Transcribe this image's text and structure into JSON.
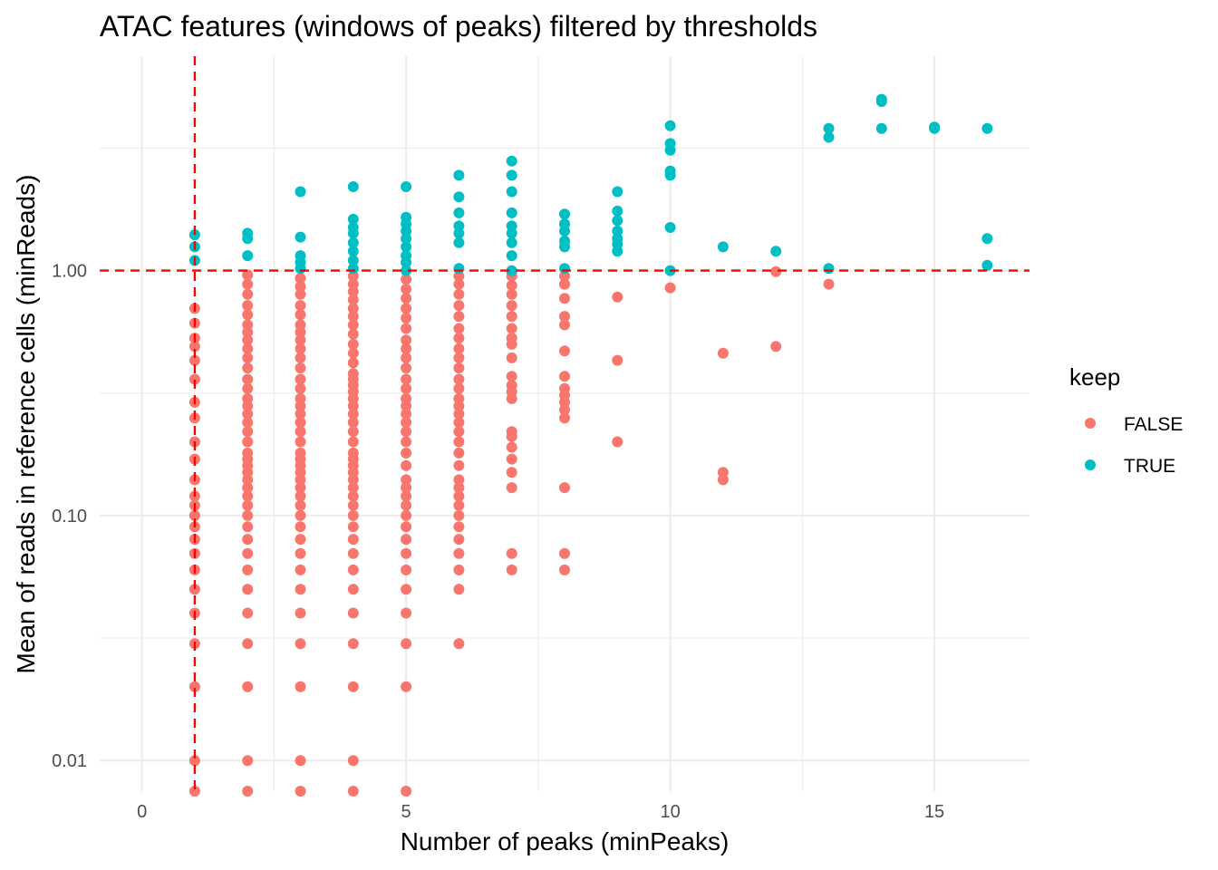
{
  "chart_data": {
    "type": "scatter",
    "title": "ATAC features (windows of peaks) filtered by thresholds",
    "xlabel": "Number of peaks (minPeaks)",
    "ylabel": "Mean of reads in reference cells (minReads)",
    "x_scale": "linear",
    "y_scale": "log10",
    "xlim": [
      -0.8,
      16.8
    ],
    "ylim": [
      0.0075,
      7.5
    ],
    "x_ticks": [
      0,
      5,
      10,
      15
    ],
    "x_tick_labels": [
      "0",
      "5",
      "10",
      "15"
    ],
    "y_ticks": [
      0.01,
      0.1,
      1
    ],
    "y_tick_labels": [
      "0.01",
      "0.10",
      "1.00"
    ],
    "grid": true,
    "thresholds": {
      "minPeaks": 1,
      "minReads": 1
    },
    "legend": {
      "title": "keep",
      "position": "right",
      "entries": [
        {
          "label": "FALSE",
          "color": "#F8766D"
        },
        {
          "label": "TRUE",
          "color": "#00BFC4"
        }
      ]
    },
    "series": [
      {
        "name": "FALSE",
        "color": "#F8766D",
        "points": [
          [
            1,
            0.0075
          ],
          [
            1,
            0.01
          ],
          [
            1,
            0.02
          ],
          [
            1,
            0.03
          ],
          [
            1,
            0.04
          ],
          [
            1,
            0.05
          ],
          [
            1,
            0.06
          ],
          [
            1,
            0.07
          ],
          [
            1,
            0.08
          ],
          [
            1,
            0.09
          ],
          [
            1,
            0.1
          ],
          [
            1,
            0.11
          ],
          [
            1,
            0.12
          ],
          [
            1,
            0.14
          ],
          [
            1,
            0.17
          ],
          [
            1,
            0.2
          ],
          [
            1,
            0.25
          ],
          [
            1,
            0.29
          ],
          [
            1,
            0.36
          ],
          [
            1,
            0.43
          ],
          [
            1,
            0.49
          ],
          [
            1,
            0.53
          ],
          [
            1,
            0.61
          ],
          [
            1,
            0.7
          ],
          [
            2,
            0.0075
          ],
          [
            2,
            0.01
          ],
          [
            2,
            0.02
          ],
          [
            2,
            0.03
          ],
          [
            2,
            0.04
          ],
          [
            2,
            0.05
          ],
          [
            2,
            0.06
          ],
          [
            2,
            0.07
          ],
          [
            2,
            0.08
          ],
          [
            2,
            0.09
          ],
          [
            2,
            0.1
          ],
          [
            2,
            0.11
          ],
          [
            2,
            0.12
          ],
          [
            2,
            0.13
          ],
          [
            2,
            0.14
          ],
          [
            2,
            0.15
          ],
          [
            2,
            0.16
          ],
          [
            2,
            0.17
          ],
          [
            2,
            0.18
          ],
          [
            2,
            0.2
          ],
          [
            2,
            0.22
          ],
          [
            2,
            0.24
          ],
          [
            2,
            0.26
          ],
          [
            2,
            0.28
          ],
          [
            2,
            0.3
          ],
          [
            2,
            0.33
          ],
          [
            2,
            0.36
          ],
          [
            2,
            0.4
          ],
          [
            2,
            0.44
          ],
          [
            2,
            0.48
          ],
          [
            2,
            0.52
          ],
          [
            2,
            0.56
          ],
          [
            2,
            0.6
          ],
          [
            2,
            0.66
          ],
          [
            2,
            0.72
          ],
          [
            2,
            0.8
          ],
          [
            2,
            0.88
          ],
          [
            2,
            0.96
          ],
          [
            3,
            0.0075
          ],
          [
            3,
            0.01
          ],
          [
            3,
            0.02
          ],
          [
            3,
            0.03
          ],
          [
            3,
            0.04
          ],
          [
            3,
            0.05
          ],
          [
            3,
            0.06
          ],
          [
            3,
            0.07
          ],
          [
            3,
            0.08
          ],
          [
            3,
            0.09
          ],
          [
            3,
            0.1
          ],
          [
            3,
            0.11
          ],
          [
            3,
            0.12
          ],
          [
            3,
            0.13
          ],
          [
            3,
            0.14
          ],
          [
            3,
            0.15
          ],
          [
            3,
            0.16
          ],
          [
            3,
            0.17
          ],
          [
            3,
            0.18
          ],
          [
            3,
            0.2
          ],
          [
            3,
            0.22
          ],
          [
            3,
            0.24
          ],
          [
            3,
            0.26
          ],
          [
            3,
            0.28
          ],
          [
            3,
            0.3
          ],
          [
            3,
            0.33
          ],
          [
            3,
            0.36
          ],
          [
            3,
            0.4
          ],
          [
            3,
            0.44
          ],
          [
            3,
            0.48
          ],
          [
            3,
            0.52
          ],
          [
            3,
            0.56
          ],
          [
            3,
            0.6
          ],
          [
            3,
            0.66
          ],
          [
            3,
            0.72
          ],
          [
            3,
            0.8
          ],
          [
            3,
            0.86
          ],
          [
            3,
            0.93
          ],
          [
            4,
            0.0075
          ],
          [
            4,
            0.01
          ],
          [
            4,
            0.02
          ],
          [
            4,
            0.03
          ],
          [
            4,
            0.04
          ],
          [
            4,
            0.05
          ],
          [
            4,
            0.06
          ],
          [
            4,
            0.07
          ],
          [
            4,
            0.08
          ],
          [
            4,
            0.09
          ],
          [
            4,
            0.1
          ],
          [
            4,
            0.11
          ],
          [
            4,
            0.12
          ],
          [
            4,
            0.13
          ],
          [
            4,
            0.14
          ],
          [
            4,
            0.15
          ],
          [
            4,
            0.16
          ],
          [
            4,
            0.17
          ],
          [
            4,
            0.18
          ],
          [
            4,
            0.2
          ],
          [
            4,
            0.22
          ],
          [
            4,
            0.24
          ],
          [
            4,
            0.26
          ],
          [
            4,
            0.28
          ],
          [
            4,
            0.3
          ],
          [
            4,
            0.32
          ],
          [
            4,
            0.34
          ],
          [
            4,
            0.36
          ],
          [
            4,
            0.38
          ],
          [
            4,
            0.42
          ],
          [
            4,
            0.46
          ],
          [
            4,
            0.5
          ],
          [
            4,
            0.55
          ],
          [
            4,
            0.6
          ],
          [
            4,
            0.65
          ],
          [
            4,
            0.7
          ],
          [
            4,
            0.76
          ],
          [
            4,
            0.82
          ],
          [
            4,
            0.88
          ],
          [
            4,
            0.95
          ],
          [
            5,
            0.0075
          ],
          [
            5,
            0.02
          ],
          [
            5,
            0.03
          ],
          [
            5,
            0.04
          ],
          [
            5,
            0.05
          ],
          [
            5,
            0.06
          ],
          [
            5,
            0.07
          ],
          [
            5,
            0.08
          ],
          [
            5,
            0.09
          ],
          [
            5,
            0.1
          ],
          [
            5,
            0.11
          ],
          [
            5,
            0.12
          ],
          [
            5,
            0.13
          ],
          [
            5,
            0.14
          ],
          [
            5,
            0.16
          ],
          [
            5,
            0.18
          ],
          [
            5,
            0.2
          ],
          [
            5,
            0.22
          ],
          [
            5,
            0.24
          ],
          [
            5,
            0.26
          ],
          [
            5,
            0.28
          ],
          [
            5,
            0.3
          ],
          [
            5,
            0.33
          ],
          [
            5,
            0.36
          ],
          [
            5,
            0.4
          ],
          [
            5,
            0.44
          ],
          [
            5,
            0.48
          ],
          [
            5,
            0.52
          ],
          [
            5,
            0.58
          ],
          [
            5,
            0.64
          ],
          [
            5,
            0.7
          ],
          [
            5,
            0.77
          ],
          [
            5,
            0.84
          ],
          [
            5,
            0.92
          ],
          [
            6,
            0.03
          ],
          [
            6,
            0.05
          ],
          [
            6,
            0.06
          ],
          [
            6,
            0.07
          ],
          [
            6,
            0.08
          ],
          [
            6,
            0.09
          ],
          [
            6,
            0.1
          ],
          [
            6,
            0.11
          ],
          [
            6,
            0.12
          ],
          [
            6,
            0.13
          ],
          [
            6,
            0.14
          ],
          [
            6,
            0.16
          ],
          [
            6,
            0.18
          ],
          [
            6,
            0.2
          ],
          [
            6,
            0.22
          ],
          [
            6,
            0.24
          ],
          [
            6,
            0.26
          ],
          [
            6,
            0.28
          ],
          [
            6,
            0.3
          ],
          [
            6,
            0.33
          ],
          [
            6,
            0.36
          ],
          [
            6,
            0.4
          ],
          [
            6,
            0.44
          ],
          [
            6,
            0.48
          ],
          [
            6,
            0.53
          ],
          [
            6,
            0.58
          ],
          [
            6,
            0.65
          ],
          [
            6,
            0.72
          ],
          [
            6,
            0.8
          ],
          [
            6,
            0.88
          ],
          [
            6,
            0.95
          ],
          [
            7,
            0.06
          ],
          [
            7,
            0.07
          ],
          [
            7,
            0.13
          ],
          [
            7,
            0.15
          ],
          [
            7,
            0.17
          ],
          [
            7,
            0.19
          ],
          [
            7,
            0.21
          ],
          [
            7,
            0.22
          ],
          [
            7,
            0.3
          ],
          [
            7,
            0.32
          ],
          [
            7,
            0.34
          ],
          [
            7,
            0.37
          ],
          [
            7,
            0.44
          ],
          [
            7,
            0.5
          ],
          [
            7,
            0.53
          ],
          [
            7,
            0.58
          ],
          [
            7,
            0.65
          ],
          [
            7,
            0.72
          ],
          [
            7,
            0.8
          ],
          [
            7,
            0.87
          ],
          [
            7,
            0.95
          ],
          [
            7,
            0.99
          ],
          [
            8,
            0.06
          ],
          [
            8,
            0.07
          ],
          [
            8,
            0.13
          ],
          [
            8,
            0.25
          ],
          [
            8,
            0.27
          ],
          [
            8,
            0.29
          ],
          [
            8,
            0.31
          ],
          [
            8,
            0.33
          ],
          [
            8,
            0.37
          ],
          [
            8,
            0.47
          ],
          [
            8,
            0.6
          ],
          [
            8,
            0.65
          ],
          [
            8,
            0.77
          ],
          [
            8,
            0.88
          ],
          [
            8,
            0.95
          ],
          [
            9,
            0.2
          ],
          [
            9,
            0.43
          ],
          [
            9,
            0.78
          ],
          [
            10,
            0.85
          ],
          [
            11,
            0.14
          ],
          [
            11,
            0.15
          ],
          [
            11,
            0.46
          ],
          [
            12,
            0.49
          ],
          [
            12,
            0.99
          ],
          [
            13,
            0.88
          ]
        ]
      },
      {
        "name": "TRUE",
        "color": "#00BFC4",
        "points": [
          [
            1,
            1.1
          ],
          [
            1,
            1.25
          ],
          [
            1,
            1.4
          ],
          [
            2,
            1.15
          ],
          [
            2,
            1.35
          ],
          [
            2,
            1.42
          ],
          [
            3,
            1.02
          ],
          [
            3,
            1.08
          ],
          [
            3,
            1.15
          ],
          [
            3,
            1.37
          ],
          [
            3,
            2.1
          ],
          [
            4,
            1.02
          ],
          [
            4,
            1.1
          ],
          [
            4,
            1.2
          ],
          [
            4,
            1.3
          ],
          [
            4,
            1.42
          ],
          [
            4,
            1.5
          ],
          [
            4,
            1.62
          ],
          [
            4,
            2.2
          ],
          [
            5,
            1.0
          ],
          [
            5,
            1.08
          ],
          [
            5,
            1.15
          ],
          [
            5,
            1.25
          ],
          [
            5,
            1.35
          ],
          [
            5,
            1.45
          ],
          [
            5,
            1.55
          ],
          [
            5,
            1.65
          ],
          [
            5,
            2.2
          ],
          [
            6,
            1.02
          ],
          [
            6,
            1.3
          ],
          [
            6,
            1.42
          ],
          [
            6,
            1.52
          ],
          [
            6,
            1.72
          ],
          [
            6,
            2.0
          ],
          [
            6,
            2.45
          ],
          [
            7,
            1.0
          ],
          [
            7,
            1.15
          ],
          [
            7,
            1.3
          ],
          [
            7,
            1.42
          ],
          [
            7,
            1.52
          ],
          [
            7,
            1.72
          ],
          [
            7,
            2.1
          ],
          [
            7,
            2.45
          ],
          [
            7,
            2.8
          ],
          [
            8,
            1.02
          ],
          [
            8,
            1.25
          ],
          [
            8,
            1.32
          ],
          [
            8,
            1.45
          ],
          [
            8,
            1.55
          ],
          [
            8,
            1.7
          ],
          [
            9,
            1.2
          ],
          [
            9,
            1.28
          ],
          [
            9,
            1.35
          ],
          [
            9,
            1.45
          ],
          [
            9,
            1.6
          ],
          [
            9,
            1.75
          ],
          [
            9,
            2.1
          ],
          [
            10,
            1.0
          ],
          [
            10,
            1.5
          ],
          [
            10,
            2.45
          ],
          [
            10,
            2.55
          ],
          [
            10,
            3.1
          ],
          [
            10,
            3.3
          ],
          [
            10,
            3.9
          ],
          [
            11,
            1.25
          ],
          [
            12,
            1.2
          ],
          [
            13,
            1.02
          ],
          [
            13,
            3.5
          ],
          [
            13,
            3.8
          ],
          [
            14,
            3.8
          ],
          [
            14,
            4.9
          ],
          [
            14,
            5.0
          ],
          [
            15,
            3.8
          ],
          [
            15,
            3.85
          ],
          [
            16,
            1.05
          ],
          [
            16,
            1.35
          ],
          [
            16,
            3.8
          ]
        ]
      }
    ]
  }
}
